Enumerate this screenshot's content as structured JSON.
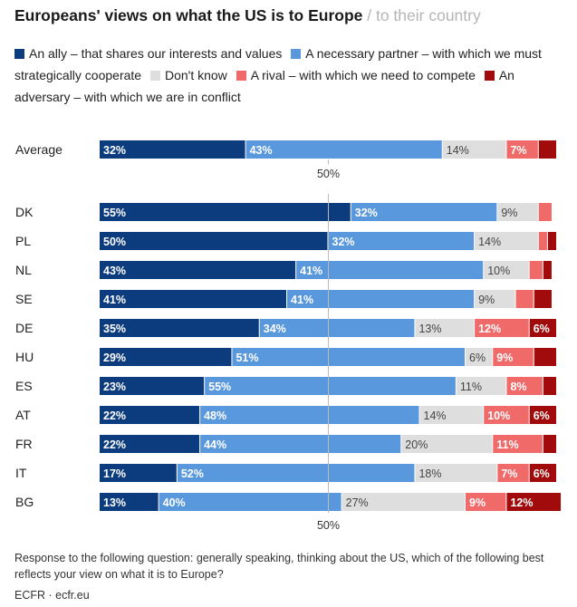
{
  "title": "Europeans' views on what the US is to Europe",
  "title_suffix": "/ to their country",
  "note": "Response to the following question: generally speaking, thinking about the US, which of the following best reflects your view on what it is to Europe?",
  "source": "ECFR · ecfr.eu",
  "legend": [
    {
      "label": "An ally – that shares our interests and values",
      "color": "#0c3c7e"
    },
    {
      "label": "A necessary partner – with which we must strategically cooperate",
      "color": "#5a98de"
    },
    {
      "label": "Don't know",
      "color": "#dedede"
    },
    {
      "label": "A rival – with which we need to compete",
      "color": "#f06a6a"
    },
    {
      "label": "An adversary – with which we are in conflict",
      "color": "#a10b0b"
    }
  ],
  "chart_data": {
    "type": "bar",
    "orientation": "horizontal",
    "stacked": true,
    "xlim": [
      0,
      100
    ],
    "reference_label": "50%",
    "categories": [
      "Average",
      "DK",
      "PL",
      "NL",
      "SE",
      "DE",
      "HU",
      "ES",
      "AT",
      "FR",
      "IT",
      "BG"
    ],
    "series": [
      {
        "name": "An ally – that shares our interests and values",
        "color": "#0c3c7e",
        "values": [
          32,
          55,
          50,
          43,
          41,
          35,
          29,
          23,
          22,
          22,
          17,
          13
        ],
        "labels": [
          "32%",
          "55%",
          "50%",
          "43%",
          "41%",
          "35%",
          "29%",
          "23%",
          "22%",
          "22%",
          "17%",
          "13%"
        ]
      },
      {
        "name": "A necessary partner – with which we must strategically cooperate",
        "color": "#5a98de",
        "values": [
          43,
          32,
          32,
          41,
          41,
          34,
          51,
          55,
          48,
          44,
          52,
          40
        ],
        "labels": [
          "43%",
          "32%",
          "32%",
          "41%",
          "41%",
          "34%",
          "51%",
          "55%",
          "48%",
          "44%",
          "52%",
          "40%"
        ]
      },
      {
        "name": "Don't know",
        "color": "#dedede",
        "values": [
          14,
          9,
          14,
          10,
          9,
          13,
          6,
          11,
          14,
          20,
          18,
          27
        ],
        "labels": [
          "14%",
          "9%",
          "14%",
          "10%",
          "9%",
          "13%",
          "6%",
          "11%",
          "14%",
          "20%",
          "18%",
          "27%"
        ]
      },
      {
        "name": "A rival – with which we need to compete",
        "color": "#f06a6a",
        "values": [
          7,
          3,
          2,
          3,
          4,
          12,
          9,
          8,
          10,
          11,
          7,
          9
        ],
        "labels": [
          "7%",
          "",
          "",
          "",
          "",
          "12%",
          "9%",
          "8%",
          "10%",
          "11%",
          "7%",
          "9%"
        ]
      },
      {
        "name": "An adversary – with which we are in conflict",
        "color": "#a10b0b",
        "values": [
          4,
          0,
          2,
          2,
          4,
          6,
          5,
          3,
          6,
          3,
          6,
          12
        ],
        "labels": [
          "",
          "",
          "",
          "",
          "",
          "6%",
          "",
          "",
          "6%",
          "",
          "6%",
          "12%"
        ]
      }
    ]
  }
}
